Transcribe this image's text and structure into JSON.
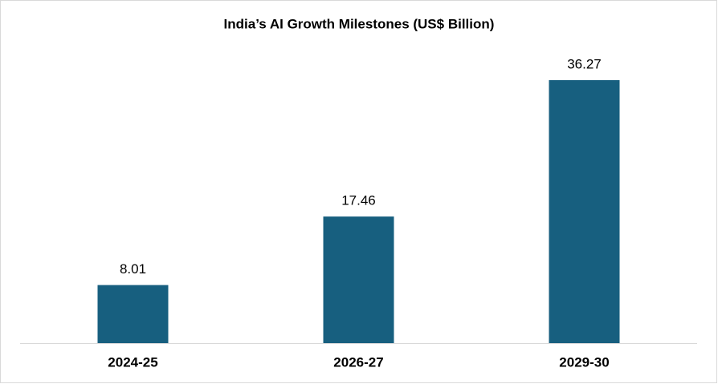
{
  "chart_data": {
    "type": "bar",
    "title": "India’s AI Growth Milestones (US$ Billion)",
    "categories": [
      "2024-25",
      "2026-27",
      "2029-30"
    ],
    "values": [
      8.01,
      17.46,
      36.27
    ],
    "color": "#175f7f"
  }
}
